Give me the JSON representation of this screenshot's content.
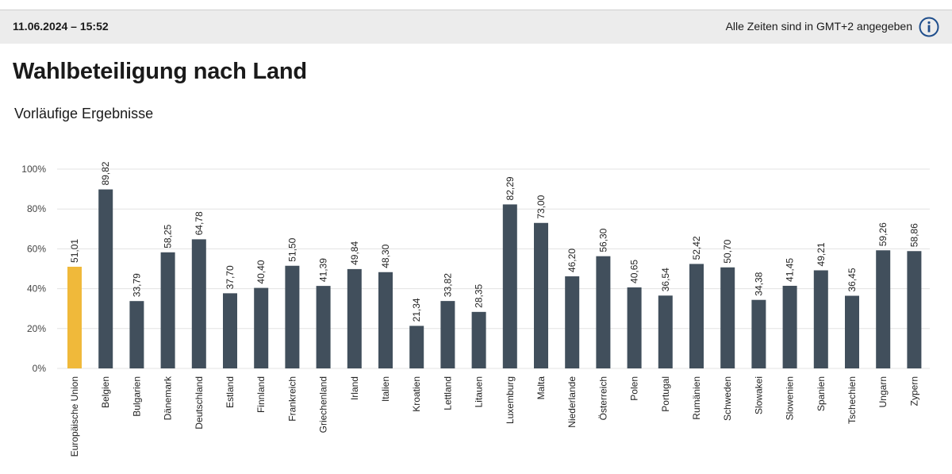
{
  "header": {
    "timestamp": "11.06.2024 – 15:52",
    "timezone_note": "Alle Zeiten sind in GMT+2 angegeben"
  },
  "title": "Wahlbeteiligung nach Land",
  "subtitle": "Vorläufige Ergebnisse",
  "colors": {
    "highlight": "#f0b93a",
    "bar": "#414f5c",
    "grid": "#e3e3e3",
    "info_icon": "#1f4e8c"
  },
  "chart_data": {
    "type": "bar",
    "title": "Wahlbeteiligung nach Land",
    "subtitle": "Vorläufige Ergebnisse",
    "xlabel": "",
    "ylabel": "",
    "ylim": [
      0,
      100
    ],
    "yticks": [
      0,
      20,
      40,
      60,
      80,
      100
    ],
    "ytick_labels": [
      "0%",
      "20%",
      "40%",
      "60%",
      "80%",
      "100%"
    ],
    "grid": true,
    "highlight_index": 0,
    "categories": [
      "Europäische Union",
      "Belgien",
      "Bulgarien",
      "Dänemark",
      "Deutschland",
      "Estland",
      "Finnland",
      "Frankreich",
      "Griechenland",
      "Irland",
      "Italien",
      "Kroatien",
      "Lettland",
      "Litauen",
      "Luxemburg",
      "Malta",
      "Niederlande",
      "Österreich",
      "Polen",
      "Portugal",
      "Rumänien",
      "Schweden",
      "Slowakei",
      "Slowenien",
      "Spanien",
      "Tschechien",
      "Ungarn",
      "Zypern"
    ],
    "values": [
      51.01,
      89.82,
      33.79,
      58.25,
      64.78,
      37.7,
      40.4,
      51.5,
      41.39,
      49.84,
      48.3,
      21.34,
      33.82,
      28.35,
      82.29,
      73.0,
      46.2,
      56.3,
      40.65,
      36.54,
      52.42,
      50.7,
      34.38,
      41.45,
      49.21,
      36.45,
      59.26,
      58.86
    ],
    "value_labels": [
      "51,01",
      "89,82",
      "33,79",
      "58,25",
      "64,78",
      "37,70",
      "40,40",
      "51,50",
      "41,39",
      "49,84",
      "48,30",
      "21,34",
      "33,82",
      "28,35",
      "82,29",
      "73,00",
      "46,20",
      "56,30",
      "40,65",
      "36,54",
      "52,42",
      "50,70",
      "34,38",
      "41,45",
      "49,21",
      "36,45",
      "59,26",
      "58,86"
    ]
  }
}
